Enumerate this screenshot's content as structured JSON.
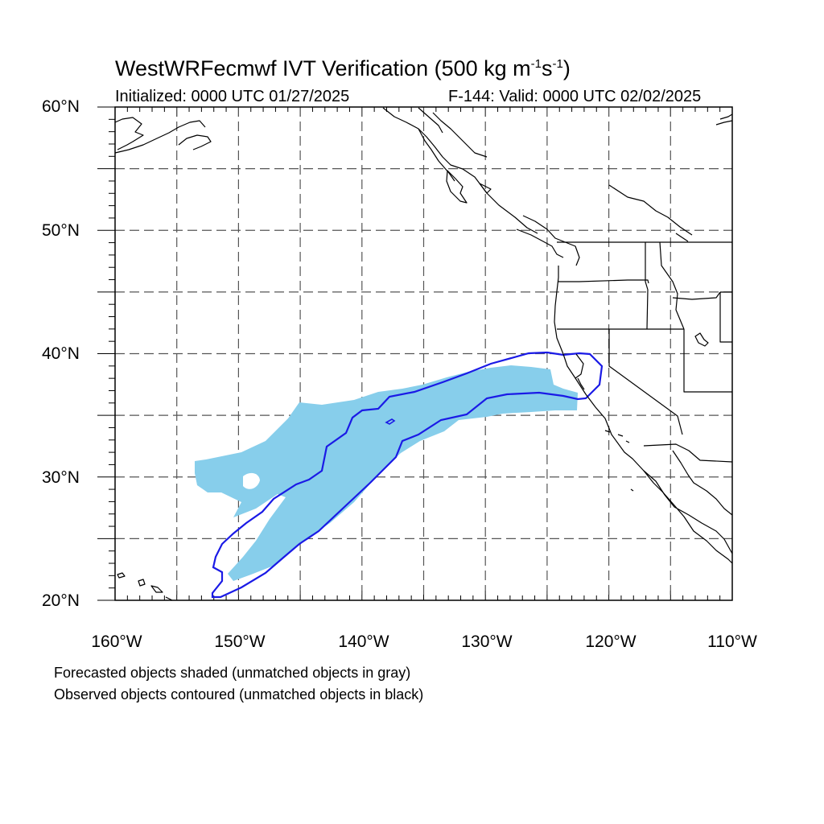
{
  "title": {
    "main": "WestWRFecmwf IVT Verification (500 kg m",
    "exp1": "-1",
    "mid": "s",
    "exp2": "-1",
    "end": ")"
  },
  "subtitle_left": "Initialized: 0000 UTC 01/27/2025",
  "subtitle_right": "F-144: Valid: 0000 UTC 02/02/2025",
  "map": {
    "lat_range": [
      20,
      60
    ],
    "lon_range": [
      -160,
      -110
    ],
    "lat_labels": [
      "60°N",
      "50°N",
      "40°N",
      "30°N",
      "20°N"
    ],
    "lon_labels": [
      "160°W",
      "150°W",
      "140°W",
      "130°W",
      "120°W",
      "110°W"
    ],
    "gridlines": "dashed every 5°",
    "forecast_fill_color": "#87ceeb",
    "observed_contour_color": "#1a1ae6"
  },
  "footnotes": [
    "Forecasted objects shaded (unmatched objects in gray)",
    "Observed objects contoured (unmatched objects in black)"
  ]
}
